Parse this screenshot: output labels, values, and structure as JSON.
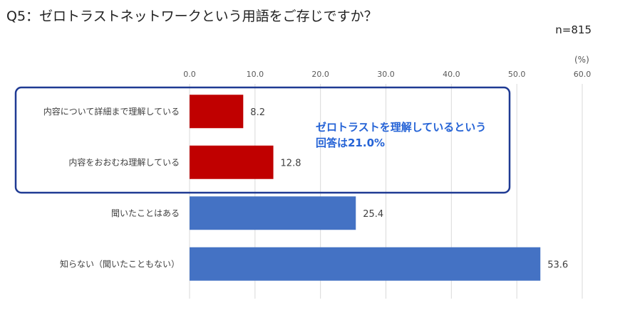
{
  "title": "Q5：ゼロトラストネットワークという用語をご存じですか？",
  "sample": "n=815",
  "unit": "(%)",
  "callout": {
    "line1": "ゼロトラストを理解しているという",
    "line2": "回答は21.0%"
  },
  "colors": {
    "highlight_bar": "#C00000",
    "normal_bar": "#4472C4",
    "callout_box": "#1F3A93",
    "callout_text": "#2563D6",
    "grid": "#D9D9D9"
  },
  "chart_data": {
    "type": "bar",
    "orientation": "horizontal",
    "categories": [
      "内容について詳細まで理解している",
      "内容をおおむね理解している",
      "聞いたことはある",
      "知らない（聞いたこともない）"
    ],
    "values": [
      8.2,
      12.8,
      25.4,
      53.6
    ],
    "value_labels": [
      "8.2",
      "12.8",
      "25.4",
      "53.6"
    ],
    "highlighted": [
      true,
      true,
      false,
      false
    ],
    "xlim": [
      0,
      60
    ],
    "xticks": [
      "0.0",
      "10.0",
      "20.0",
      "30.0",
      "40.0",
      "50.0",
      "60.0"
    ],
    "grid": true
  }
}
